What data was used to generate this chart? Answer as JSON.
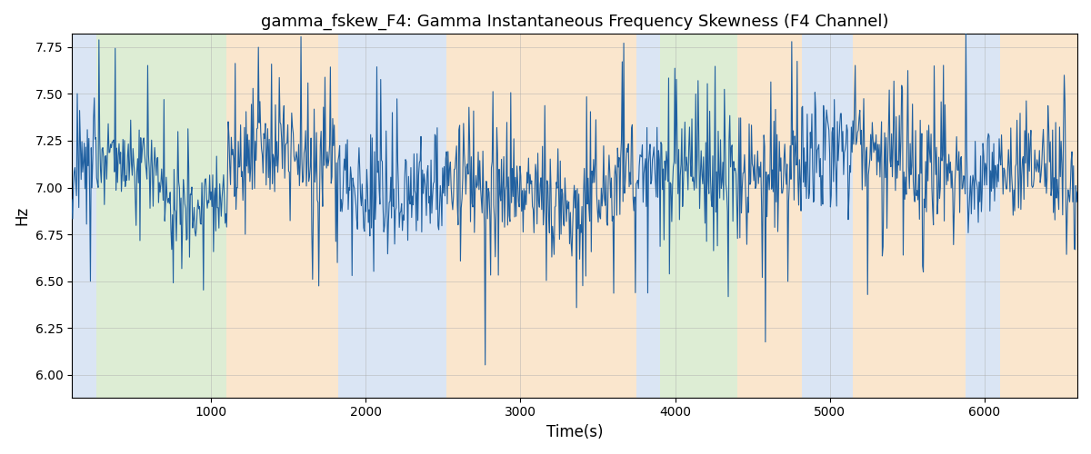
{
  "title": "gamma_fskew_F4: Gamma Instantaneous Frequency Skewness (F4 Channel)",
  "xlabel": "Time(s)",
  "ylabel": "Hz",
  "ylim": [
    5.88,
    7.82
  ],
  "xlim": [
    100,
    6600
  ],
  "line_color": "#2060a0",
  "line_width": 0.8,
  "bg_color": "white",
  "grid_color": "#aaaaaa",
  "grid_alpha": 0.6,
  "grid_lw": 0.5,
  "bands": [
    {
      "xmin": 100,
      "xmax": 260,
      "color": "#aec6e8",
      "alpha": 0.45
    },
    {
      "xmin": 260,
      "xmax": 1100,
      "color": "#b5d9a0",
      "alpha": 0.45
    },
    {
      "xmin": 1100,
      "xmax": 1820,
      "color": "#f5c990",
      "alpha": 0.45
    },
    {
      "xmin": 1820,
      "xmax": 2520,
      "color": "#aec6e8",
      "alpha": 0.45
    },
    {
      "xmin": 2520,
      "xmax": 3750,
      "color": "#f5c990",
      "alpha": 0.45
    },
    {
      "xmin": 3750,
      "xmax": 3900,
      "color": "#aec6e8",
      "alpha": 0.45
    },
    {
      "xmin": 3900,
      "xmax": 4400,
      "color": "#b5d9a0",
      "alpha": 0.45
    },
    {
      "xmin": 4400,
      "xmax": 4820,
      "color": "#f5c990",
      "alpha": 0.45
    },
    {
      "xmin": 4820,
      "xmax": 5150,
      "color": "#aec6e8",
      "alpha": 0.45
    },
    {
      "xmin": 5150,
      "xmax": 5880,
      "color": "#f5c990",
      "alpha": 0.45
    },
    {
      "xmin": 5880,
      "xmax": 6100,
      "color": "#aec6e8",
      "alpha": 0.45
    },
    {
      "xmin": 6100,
      "xmax": 6600,
      "color": "#f5c990",
      "alpha": 0.45
    }
  ],
  "seed": 12345,
  "n_points": 1300,
  "t_start": 100,
  "t_end": 6600,
  "base_mean": 7.05,
  "title_fontsize": 13
}
